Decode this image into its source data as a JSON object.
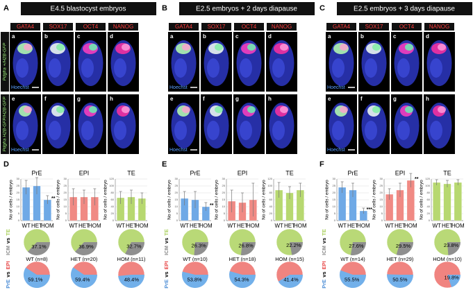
{
  "panels": [
    {
      "letter": "A",
      "title": "E4.5 blastocyst embryos",
      "stains": [
        "GATA4",
        "SOX17",
        "OCT4",
        "NANOG"
      ],
      "sublabels": [
        "a",
        "b",
        "c",
        "d",
        "e",
        "f",
        "g",
        "h"
      ],
      "hoechst": "Hoechst"
    },
    {
      "letter": "B",
      "title": "E2.5 embryos + 2 days diapause",
      "stains": [
        "GATA4",
        "SOX17",
        "OCT4",
        "NANOG"
      ],
      "sublabels": [
        "a",
        "b",
        "c",
        "d",
        "e",
        "f",
        "g",
        "h"
      ],
      "hoechst": "Hoechst"
    },
    {
      "letter": "C",
      "title": "E2.5 embryos + 3 days diapause",
      "stains": [
        "GATA4",
        "SOX17",
        "OCT4",
        "NANOG"
      ],
      "sublabels": [
        "a",
        "b",
        "c",
        "d",
        "e",
        "f",
        "g",
        "h"
      ],
      "hoechst": "Hoechst"
    }
  ],
  "row_labels": [
    "Pdgfra +/H2B-GFP",
    "Pdgfra H2B-GFP/H2B-GFP"
  ],
  "lower_letters": [
    "D",
    "E",
    "F"
  ],
  "chart_data": [
    {
      "type": "bar",
      "title": "PrE",
      "ylabel": "No of cells / embryo",
      "categories": [
        "WT",
        "HET",
        "HOM"
      ],
      "values": [
        24,
        25,
        15
      ],
      "errors": [
        5,
        6,
        3
      ],
      "color": "#6fa9e6",
      "ylim": [
        0,
        30
      ],
      "yticks": [
        0,
        5,
        10,
        15,
        20,
        25,
        30
      ],
      "annotations": [
        {
          "index": 2,
          "text": "**"
        }
      ]
    },
    {
      "type": "bar",
      "title": "EPI",
      "ylabel": "No of cells / embryo",
      "categories": [
        "WT",
        "HET",
        "HOM"
      ],
      "values": [
        17,
        17,
        17
      ],
      "errors": [
        6,
        5,
        6
      ],
      "color": "#f08a84",
      "ylim": [
        0,
        30
      ],
      "yticks": [
        0,
        5,
        10,
        15,
        20,
        25,
        30
      ]
    },
    {
      "type": "bar",
      "title": "TE",
      "ylabel": "No of cells / embryo",
      "categories": [
        "WT",
        "HET",
        "HOM"
      ],
      "values": [
        66,
        68,
        64
      ],
      "errors": [
        18,
        20,
        16
      ],
      "color": "#b7d870",
      "ylim": [
        0,
        120
      ],
      "yticks": [
        0,
        20,
        40,
        60,
        80,
        100,
        120
      ]
    },
    {
      "type": "pie",
      "label_parts": [
        {
          "text": "ICM",
          "color": "#8a8a8a"
        },
        {
          "text": "vs",
          "color": "#000000"
        },
        {
          "text": "TE",
          "color": "#a9cf5c"
        }
      ],
      "categories": [
        "WT (n=8)",
        "HET (n=20)",
        "HOM (n=11)"
      ],
      "values": [
        37.1,
        36.9,
        32.7
      ],
      "value_labels": [
        "37.1%",
        "36.9%",
        "32.7%"
      ],
      "color": "#8f8f8f",
      "rest_color": "#b9d977"
    },
    {
      "type": "pie",
      "label_parts": [
        {
          "text": "PrE",
          "color": "#4f8fd6"
        },
        {
          "text": "vs",
          "color": "#000000"
        },
        {
          "text": "EPI",
          "color": "#e84848"
        }
      ],
      "values": [
        59.1,
        59.4,
        48.4
      ],
      "value_labels": [
        "59.1%",
        "59.4%",
        "48.4%"
      ],
      "color": "#72b0ea",
      "rest_color": "#f08480"
    },
    {
      "type": "bar",
      "title": "PrE",
      "ylabel": "No of cells / embryo",
      "categories": [
        "WT",
        "HET",
        "HOM"
      ],
      "values": [
        16,
        15,
        10
      ],
      "errors": [
        5,
        6,
        3
      ],
      "color": "#6fa9e6",
      "ylim": [
        0,
        30
      ],
      "yticks": [
        0,
        5,
        10,
        15,
        20,
        25,
        30
      ],
      "annotations": [
        {
          "index": 2,
          "text": "**"
        }
      ]
    },
    {
      "type": "bar",
      "title": "EPI",
      "ylabel": "No of cells / embryo",
      "categories": [
        "WT",
        "HET",
        "HOM"
      ],
      "values": [
        14,
        13,
        15
      ],
      "errors": [
        8,
        7,
        12
      ],
      "color": "#f08a84",
      "ylim": [
        0,
        30
      ],
      "yticks": [
        0,
        5,
        10,
        15,
        20,
        25,
        30
      ]
    },
    {
      "type": "bar",
      "title": "TE",
      "ylabel": "No of cells / embryo",
      "categories": [
        "WT",
        "HET",
        "HOM"
      ],
      "values": [
        88,
        80,
        88
      ],
      "errors": [
        22,
        18,
        20
      ],
      "color": "#b7d870",
      "ylim": [
        0,
        120
      ],
      "yticks": [
        0,
        20,
        40,
        60,
        80,
        100,
        120
      ]
    },
    {
      "type": "pie",
      "label_parts": [
        {
          "text": "ICM",
          "color": "#8a8a8a"
        },
        {
          "text": "vs",
          "color": "#000000"
        },
        {
          "text": "TE",
          "color": "#a9cf5c"
        }
      ],
      "categories": [
        "WT (n=10)",
        "HET (n=18)",
        "HOM (n=15)"
      ],
      "values": [
        26.3,
        26.8,
        22.2
      ],
      "value_labels": [
        "26.3%",
        "26.8%",
        "22.2%"
      ],
      "color": "#8f8f8f",
      "rest_color": "#b9d977"
    },
    {
      "type": "pie",
      "label_parts": [
        {
          "text": "PrE",
          "color": "#4f8fd6"
        },
        {
          "text": "vs",
          "color": "#000000"
        },
        {
          "text": "EPI",
          "color": "#e84848"
        }
      ],
      "values": [
        53.8,
        54.3,
        41.4
      ],
      "value_labels": [
        "53.8%",
        "54.3%",
        "41.4%"
      ],
      "color": "#72b0ea",
      "rest_color": "#f08480"
    },
    {
      "type": "bar",
      "title": "PrE",
      "ylabel": "No of cells / embryo",
      "categories": [
        "WT",
        "HET",
        "HOM"
      ],
      "values": [
        24,
        22,
        7
      ],
      "errors": [
        4,
        5,
        2
      ],
      "color": "#6fa9e6",
      "ylim": [
        0,
        30
      ],
      "yticks": [
        0,
        5,
        10,
        15,
        20,
        25,
        30
      ],
      "annotations": [
        {
          "index": 2,
          "text": "***"
        }
      ]
    },
    {
      "type": "bar",
      "title": "EPI",
      "ylabel": "No of cells / embryo",
      "categories": [
        "WT",
        "HET",
        "HOM"
      ],
      "values": [
        19,
        22,
        29
      ],
      "errors": [
        4,
        5,
        5
      ],
      "color": "#f08a84",
      "ylim": [
        0,
        30
      ],
      "yticks": [
        0,
        5,
        10,
        15,
        20,
        25,
        30
      ],
      "annotations": [
        {
          "index": 2,
          "text": "**"
        }
      ]
    },
    {
      "type": "bar",
      "title": "TE",
      "ylabel": "No of cells / embryo",
      "categories": [
        "WT",
        "HET",
        "HOM"
      ],
      "values": [
        110,
        106,
        110
      ],
      "errors": [
        8,
        10,
        8
      ],
      "color": "#b7d870",
      "ylim": [
        0,
        120
      ],
      "yticks": [
        0,
        20,
        40,
        60,
        80,
        100,
        120
      ]
    },
    {
      "type": "pie",
      "label_parts": [
        {
          "text": "ICM",
          "color": "#8a8a8a"
        },
        {
          "text": "vs",
          "color": "#000000"
        },
        {
          "text": "TE",
          "color": "#a9cf5c"
        }
      ],
      "categories": [
        "WT (n=14)",
        "HET (n=29)",
        "HOM (n=10)"
      ],
      "values": [
        27.6,
        29.5,
        23.8
      ],
      "value_labels": [
        "27.6%",
        "29.5%",
        "23.8%"
      ],
      "color": "#8f8f8f",
      "rest_color": "#b9d977"
    },
    {
      "type": "pie",
      "label_parts": [
        {
          "text": "PrE",
          "color": "#4f8fd6"
        },
        {
          "text": "vs",
          "color": "#000000"
        },
        {
          "text": "EPI",
          "color": "#e84848"
        }
      ],
      "values": [
        55.5,
        50.5,
        19.8
      ],
      "value_labels": [
        "55.5%",
        "50.5%",
        "19.8%"
      ],
      "color": "#72b0ea",
      "rest_color": "#f08480"
    }
  ]
}
